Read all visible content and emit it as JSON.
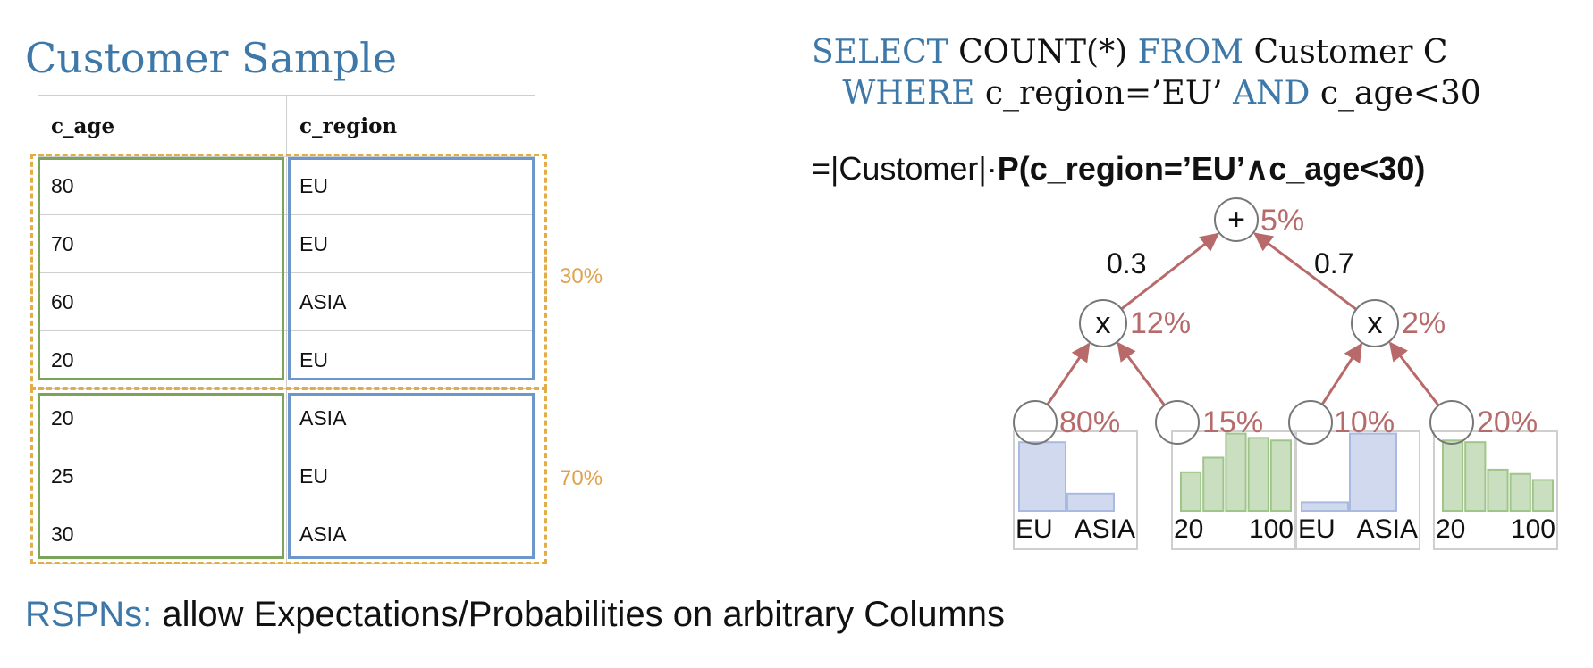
{
  "title": "Customer Sample",
  "table": {
    "headers": [
      "c_age",
      "c_region"
    ],
    "rows": [
      [
        "80",
        "EU"
      ],
      [
        "70",
        "EU"
      ],
      [
        "60",
        "ASIA"
      ],
      [
        "20",
        "EU"
      ],
      [
        "20",
        "ASIA"
      ],
      [
        "25",
        "EU"
      ],
      [
        "30",
        "ASIA"
      ]
    ],
    "cluster_labels": [
      "30%",
      "70%"
    ]
  },
  "sql": {
    "kw_select": "SELECT",
    "select_rest": " COUNT(*) ",
    "kw_from": "FROM",
    "from_rest": " Customer C",
    "kw_where": "WHERE",
    "where_rest": " c_region=’EU’ ",
    "kw_and": "AND",
    "and_rest": " c_age<30"
  },
  "formula": {
    "prefix": "=|Customer|·",
    "bold": "P(c_region=’EU’∧c_age<30)"
  },
  "spn": {
    "sum_symbol": "+",
    "sum_value": "5%",
    "weights": [
      "0.3",
      "0.7"
    ],
    "product_symbol": "x",
    "product_values": [
      "12%",
      "2%"
    ],
    "leaf_values": [
      "80%",
      "15%",
      "10%",
      "20%"
    ],
    "histograms": [
      {
        "labels": [
          "EU",
          "ASIA"
        ],
        "bars": [
          0.8,
          0.2
        ],
        "color": "#aab9e0"
      },
      {
        "labels": [
          "20",
          "100"
        ],
        "bars": [
          0.45,
          0.62,
          0.9,
          0.85,
          0.82
        ],
        "color": "#9fc58a"
      },
      {
        "labels": [
          "EU",
          "ASIA"
        ],
        "bars": [
          0.1,
          0.9
        ],
        "color": "#aab9e0"
      },
      {
        "labels": [
          "20",
          "100"
        ],
        "bars": [
          0.82,
          0.8,
          0.48,
          0.43,
          0.36
        ],
        "color": "#9fc58a"
      }
    ],
    "edge_color": "#b86a6a",
    "value_color": "#b76a6a"
  },
  "footer": {
    "label": "RSPNs:",
    "text": " allow Expectations/Probabilities on arbitrary Columns"
  }
}
